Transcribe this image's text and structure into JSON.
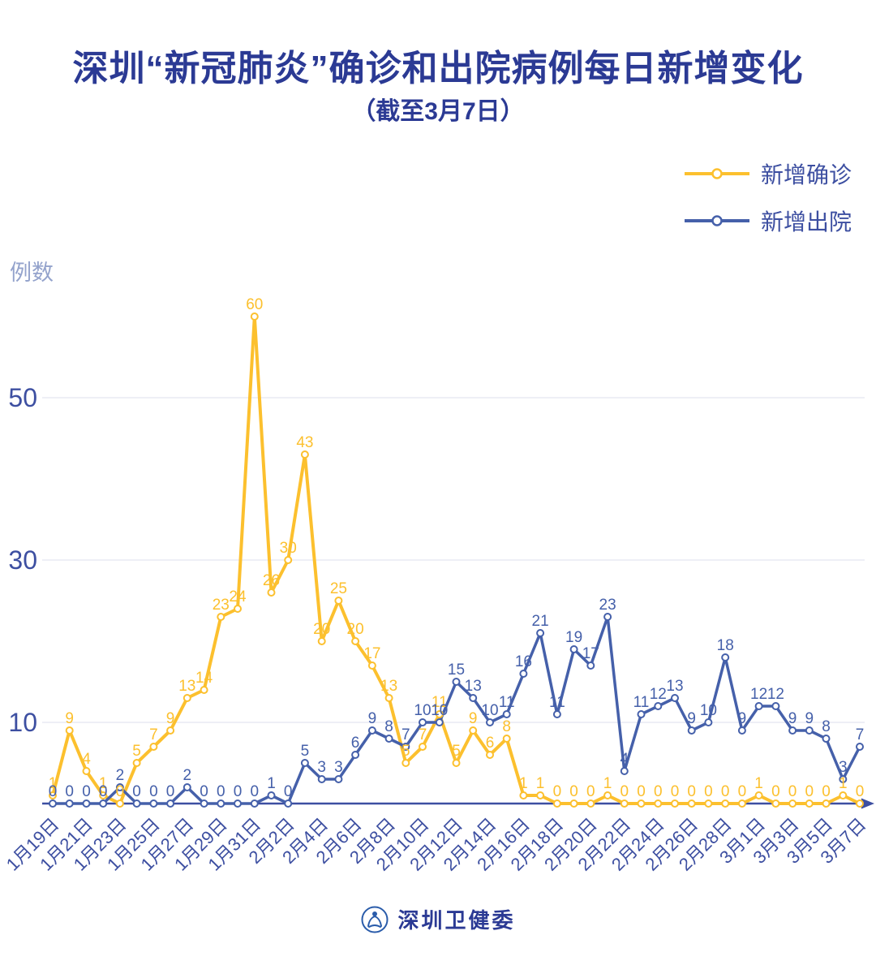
{
  "title": "深圳“新冠肺炎”确诊和出院病例每日新增变化",
  "subtitle": "（截至3月7日）",
  "footer": {
    "org_name": "深圳卫健委"
  },
  "legend": [
    {
      "label": "新增确诊",
      "color": "#fcc02e"
    },
    {
      "label": "新增出院",
      "color": "#4560aa"
    }
  ],
  "colors": {
    "title": "#2b3a94",
    "axis": "#3d4fa1",
    "grid": "#e8eaf3",
    "ylabel": "#94a3cc",
    "confirmed": "#fcc02e",
    "discharged": "#4560aa",
    "background": "#ffffff"
  },
  "chart_data": {
    "type": "line",
    "title": "深圳“新冠肺炎”确诊和出院病例每日新增变化（截至3月7日）",
    "ylabel": "例数",
    "xlabel": "",
    "yticks": [
      10,
      30,
      50
    ],
    "ylim": [
      0,
      62
    ],
    "grid": "horizontal-only",
    "legend_position": "top-right",
    "markers": "hollow-circle",
    "data_labels": true,
    "x_tick_step": 2,
    "x": [
      "1月19日",
      "1月20日",
      "1月21日",
      "1月22日",
      "1月23日",
      "1月24日",
      "1月25日",
      "1月26日",
      "1月27日",
      "1月28日",
      "1月29日",
      "1月30日",
      "1月31日",
      "2月1日",
      "2月2日",
      "2月3日",
      "2月4日",
      "2月5日",
      "2月6日",
      "2月7日",
      "2月8日",
      "2月9日",
      "2月10日",
      "2月11日",
      "2月12日",
      "2月13日",
      "2月14日",
      "2月15日",
      "2月16日",
      "2月17日",
      "2月18日",
      "2月19日",
      "2月20日",
      "2月21日",
      "2月22日",
      "2月23日",
      "2月24日",
      "2月25日",
      "2月26日",
      "2月27日",
      "2月28日",
      "2月29日",
      "3月1日",
      "3月2日",
      "3月3日",
      "3月4日",
      "3月5日",
      "3月6日",
      "3月7日"
    ],
    "series": [
      {
        "name": "新增确诊",
        "color": "#fcc02e",
        "values": [
          1,
          9,
          4,
          1,
          0,
          5,
          7,
          9,
          13,
          14,
          23,
          24,
          60,
          26,
          30,
          43,
          20,
          25,
          20,
          17,
          13,
          5,
          7,
          11,
          5,
          9,
          6,
          8,
          1,
          1,
          0,
          0,
          0,
          1,
          0,
          0,
          0,
          0,
          0,
          0,
          0,
          0,
          1,
          0,
          0,
          0,
          0,
          1,
          0
        ]
      },
      {
        "name": "新增出院",
        "color": "#4560aa",
        "values": [
          0,
          0,
          0,
          0,
          2,
          0,
          0,
          0,
          2,
          0,
          0,
          0,
          0,
          1,
          0,
          5,
          3,
          3,
          6,
          9,
          8,
          7,
          10,
          10,
          15,
          13,
          10,
          11,
          16,
          21,
          11,
          19,
          17,
          23,
          4,
          11,
          12,
          13,
          9,
          10,
          18,
          9,
          12,
          12,
          9,
          9,
          8,
          3,
          7
        ]
      }
    ]
  }
}
